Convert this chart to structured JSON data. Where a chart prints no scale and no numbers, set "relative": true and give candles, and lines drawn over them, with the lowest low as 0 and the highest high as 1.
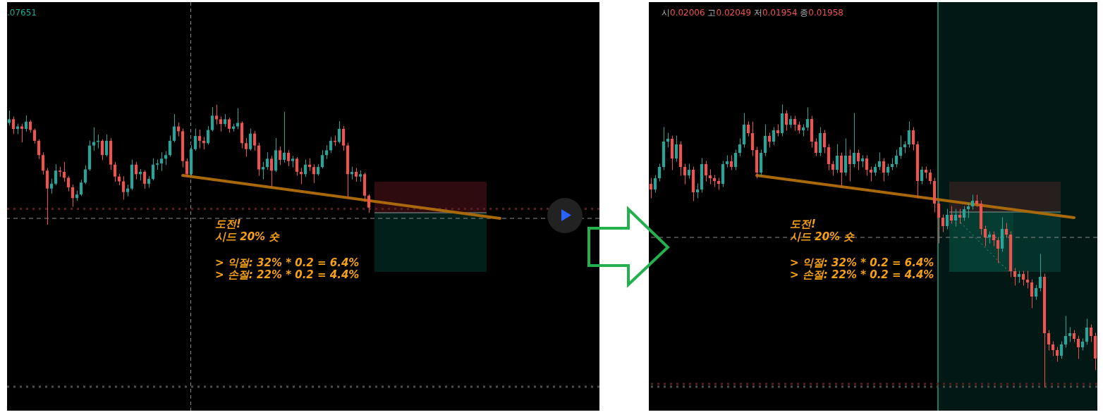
{
  "chart_data": [
    {
      "type": "candlestick",
      "relative": true,
      "tick_labels": false,
      "categories": [
        null,
        null,
        null,
        null,
        null,
        null,
        null,
        null,
        null,
        null,
        null,
        null,
        null,
        null,
        null,
        null,
        null,
        null,
        null,
        null,
        null,
        null,
        null,
        null,
        null,
        null,
        null,
        null,
        null,
        null,
        null,
        null,
        null,
        null,
        null,
        null,
        null,
        null,
        null,
        null,
        null,
        null,
        null,
        null,
        null,
        null,
        null,
        null,
        null,
        null,
        null,
        null,
        null,
        null,
        null,
        null,
        null,
        null,
        null,
        null,
        null,
        null,
        null,
        null,
        null,
        null,
        null,
        null,
        null,
        null,
        null,
        null,
        null,
        null,
        null,
        null,
        null,
        null,
        null,
        null,
        null,
        null,
        null,
        null,
        null,
        null,
        null,
        null,
        null,
        null,
        null,
        null,
        null,
        null,
        null,
        null,
        null,
        null,
        null,
        null,
        null,
        null,
        null,
        null,
        null,
        null,
        null,
        null,
        null,
        null,
        null,
        null,
        null,
        null,
        null,
        null,
        null,
        null,
        null,
        null,
        null,
        null,
        null,
        null,
        null,
        null,
        null,
        null,
        null,
        null,
        null,
        null,
        null,
        null,
        null,
        null,
        null,
        null,
        null,
        null
      ],
      "ohlc": [
        [
          0.85,
          0.95,
          0.83,
          0.88
        ],
        [
          0.88,
          0.9,
          0.76,
          0.8
        ],
        [
          0.8,
          0.84,
          0.76,
          0.82
        ],
        [
          0.82,
          0.84,
          0.69,
          0.8
        ],
        [
          0.8,
          0.91,
          0.78,
          0.86
        ],
        [
          0.86,
          0.87,
          0.77,
          0.79
        ],
        [
          0.79,
          0.8,
          0.68,
          0.7
        ],
        [
          0.7,
          0.71,
          0.55,
          0.58
        ],
        [
          0.58,
          0.6,
          0.42,
          0.45
        ],
        [
          0.45,
          0.47,
          0.0,
          0.3
        ],
        [
          0.3,
          0.38,
          0.26,
          0.34
        ],
        [
          0.34,
          0.5,
          0.33,
          0.45
        ],
        [
          0.45,
          0.48,
          0.4,
          0.44
        ],
        [
          0.44,
          0.52,
          0.36,
          0.39
        ],
        [
          0.39,
          0.4,
          0.28,
          0.31
        ],
        [
          0.31,
          0.33,
          0.15,
          0.22
        ],
        [
          0.22,
          0.28,
          0.2,
          0.25
        ],
        [
          0.25,
          0.37,
          0.24,
          0.35
        ],
        [
          0.35,
          0.49,
          0.34,
          0.46
        ],
        [
          0.46,
          0.7,
          0.45,
          0.66
        ],
        [
          0.66,
          0.81,
          0.62,
          0.69
        ],
        [
          0.69,
          0.75,
          0.64,
          0.7
        ],
        [
          0.7,
          0.71,
          0.54,
          0.58
        ],
        [
          0.58,
          0.75,
          0.57,
          0.7
        ],
        [
          0.7,
          0.72,
          0.46,
          0.5
        ],
        [
          0.5,
          0.52,
          0.36,
          0.4
        ],
        [
          0.4,
          0.42,
          0.33,
          0.36
        ],
        [
          0.36,
          0.4,
          0.21,
          0.27
        ],
        [
          0.27,
          0.33,
          0.24,
          0.3
        ],
        [
          0.3,
          0.54,
          0.29,
          0.5
        ],
        [
          0.5,
          0.52,
          0.38,
          0.42
        ],
        [
          0.42,
          0.46,
          0.37,
          0.44
        ],
        [
          0.44,
          0.45,
          0.3,
          0.34
        ],
        [
          0.34,
          0.4,
          0.31,
          0.38
        ],
        [
          0.38,
          0.55,
          0.37,
          0.5
        ],
        [
          0.5,
          0.54,
          0.46,
          0.51
        ],
        [
          0.51,
          0.6,
          0.45,
          0.55
        ],
        [
          0.55,
          0.61,
          0.5,
          0.58
        ],
        [
          0.58,
          0.74,
          0.57,
          0.7
        ],
        [
          0.7,
          0.92,
          0.69,
          0.82
        ],
        [
          0.82,
          0.85,
          0.74,
          0.78
        ],
        [
          0.78,
          0.8,
          0.48,
          0.53
        ],
        [
          0.53,
          0.55,
          0.4,
          0.42
        ],
        [
          0.42,
          0.66,
          0.41,
          0.63
        ],
        [
          0.63,
          0.8,
          0.62,
          0.74
        ],
        [
          0.74,
          0.79,
          0.64,
          0.7
        ],
        [
          0.7,
          0.73,
          0.63,
          0.68
        ],
        [
          0.68,
          0.82,
          0.67,
          0.79
        ],
        [
          0.79,
          0.98,
          0.78,
          0.91
        ],
        [
          0.91,
          1.0,
          0.84,
          0.88
        ],
        [
          0.88,
          0.9,
          0.78,
          0.84
        ],
        [
          0.84,
          0.92,
          0.82,
          0.88
        ],
        [
          0.88,
          0.89,
          0.77,
          0.8
        ],
        [
          0.8,
          0.84,
          0.78,
          0.82
        ],
        [
          0.82,
          0.97,
          0.8,
          0.85
        ],
        [
          0.85,
          0.86,
          0.64,
          0.68
        ],
        [
          0.68,
          0.72,
          0.57,
          0.63
        ],
        [
          0.63,
          0.8,
          0.62,
          0.76
        ],
        [
          0.76,
          0.78,
          0.62,
          0.66
        ],
        [
          0.66,
          0.68,
          0.41,
          0.46
        ],
        [
          0.46,
          0.52,
          0.38,
          0.48
        ],
        [
          0.48,
          0.6,
          0.46,
          0.55
        ],
        [
          0.55,
          0.57,
          0.32,
          0.45
        ],
        [
          0.45,
          0.72,
          0.44,
          0.62
        ],
        [
          0.62,
          0.65,
          0.5,
          0.54
        ],
        [
          0.54,
          0.94,
          0.52,
          0.6
        ],
        [
          0.6,
          0.62,
          0.49,
          0.53
        ],
        [
          0.53,
          0.57,
          0.48,
          0.55
        ],
        [
          0.55,
          0.56,
          0.41,
          0.44
        ],
        [
          0.44,
          0.47,
          0.34,
          0.42
        ],
        [
          0.42,
          0.54,
          0.4,
          0.5
        ],
        [
          0.5,
          0.55,
          0.45,
          0.48
        ],
        [
          0.48,
          0.5,
          0.35,
          0.42
        ],
        [
          0.42,
          0.5,
          0.41,
          0.48
        ],
        [
          0.48,
          0.62,
          0.47,
          0.58
        ],
        [
          0.58,
          0.66,
          0.55,
          0.62
        ],
        [
          0.62,
          0.73,
          0.6,
          0.7
        ],
        [
          0.7,
          0.74,
          0.66,
          0.69
        ],
        [
          0.69,
          0.86,
          0.68,
          0.8
        ],
        [
          0.8,
          0.82,
          0.62,
          0.66
        ],
        [
          0.66,
          0.68,
          0.23,
          0.42
        ],
        [
          0.42,
          0.48,
          0.38,
          0.44
        ],
        [
          0.44,
          0.47,
          0.36,
          0.4
        ],
        [
          0.4,
          0.45,
          0.36,
          0.42
        ],
        [
          0.42,
          0.43,
          0.19,
          0.24
        ],
        [
          0.24,
          0.25,
          0.1,
          0.14
        ],
        null,
        null,
        null,
        null,
        null,
        null,
        null,
        null,
        null,
        null,
        null,
        null,
        null,
        null,
        null,
        null,
        null,
        null,
        null,
        null,
        null,
        null,
        null,
        null,
        null,
        null,
        null,
        null,
        null,
        null,
        null,
        null,
        null,
        null,
        null,
        null,
        null,
        null,
        null,
        null,
        null,
        null,
        null,
        null,
        null,
        null,
        null,
        null,
        null,
        null,
        null,
        null,
        null,
        null
      ],
      "series": [
        {
          "type": "line",
          "color": "#a9690a",
          "values": [
            null,
            null,
            null,
            null,
            null,
            null,
            null,
            null,
            null,
            null,
            null,
            null,
            null,
            null,
            null,
            null,
            null,
            null,
            null,
            null,
            null,
            null,
            null,
            null,
            null,
            null,
            null,
            null,
            null,
            null,
            null,
            null,
            null,
            null,
            null,
            null,
            null,
            null,
            null,
            null,
            null,
            0.41,
            null,
            null,
            null,
            null,
            null,
            null,
            null,
            null,
            null,
            null,
            null,
            null,
            null,
            null,
            null,
            null,
            null,
            null,
            null,
            null,
            null,
            null,
            null,
            null,
            null,
            null,
            null,
            null,
            null,
            null,
            null,
            null,
            null,
            null,
            null,
            null,
            null,
            null,
            null,
            null,
            null,
            null,
            null,
            null,
            null,
            null,
            null,
            null,
            null,
            null,
            null,
            null,
            null,
            null,
            null,
            null,
            null,
            null,
            null,
            null,
            null,
            null,
            null,
            null,
            null,
            null,
            null,
            null,
            null,
            null,
            null,
            null,
            null,
            null,
            0.05,
            null,
            null,
            null,
            null,
            null,
            null,
            null,
            null,
            null,
            null,
            null,
            null,
            null,
            null,
            null,
            null,
            null,
            null,
            null,
            null,
            null,
            null,
            null
          ]
        }
      ],
      "ref_lines": [
        {
          "axis": "y",
          "value": 0.13,
          "color": "#5b1e1e",
          "line_style": "dotted"
        },
        {
          "axis": "y",
          "value": 0.05,
          "color": "#8c8c8c",
          "line_style": "dashed"
        },
        {
          "axis": "y",
          "value": -1.36,
          "color": "#4d4d4d",
          "line_style": "dotted"
        }
      ],
      "annotations": [
        ".07651",
        "도전!",
        "시드 20% 숏",
        "> 익절: 32% * 0.2 = 6.4%",
        "> 손절: 22% * 0.2 = 4.4%"
      ]
    },
    {
      "type": "candlestick",
      "relative": true,
      "tick_labels": false,
      "categories": [
        null,
        null,
        null,
        null,
        null,
        null,
        null,
        null,
        null,
        null,
        null,
        null,
        null,
        null,
        null,
        null,
        null,
        null,
        null,
        null,
        null,
        null,
        null,
        null,
        null,
        null,
        null,
        null,
        null,
        null,
        null,
        null,
        null,
        null,
        null,
        null,
        null,
        null,
        null,
        null,
        null,
        null,
        null,
        null,
        null,
        null,
        null,
        null,
        null,
        null,
        null,
        null,
        null,
        null,
        null,
        null,
        null,
        null,
        null,
        null,
        null,
        null,
        null,
        null,
        null,
        null,
        null,
        null,
        null,
        null,
        null,
        null,
        null,
        null,
        null,
        null,
        null,
        null,
        null,
        null,
        null,
        null,
        null,
        null,
        null,
        null,
        null,
        null,
        null,
        null,
        null,
        null,
        null,
        null,
        null,
        null,
        null,
        null,
        null,
        null,
        null,
        null,
        null,
        null,
        null,
        null
      ],
      "ohlc": [
        [
          0.72,
          0.74,
          0.67,
          0.7
        ],
        [
          0.7,
          0.75,
          0.69,
          0.74
        ],
        [
          0.74,
          0.79,
          0.73,
          0.78
        ],
        [
          0.78,
          0.92,
          0.77,
          0.87
        ],
        [
          0.87,
          0.9,
          0.85,
          0.88
        ],
        [
          0.88,
          0.89,
          0.77,
          0.81
        ],
        [
          0.81,
          0.89,
          0.8,
          0.86
        ],
        [
          0.86,
          0.87,
          0.75,
          0.78
        ],
        [
          0.78,
          0.79,
          0.72,
          0.75
        ],
        [
          0.75,
          0.79,
          0.74,
          0.77
        ],
        [
          0.77,
          0.78,
          0.66,
          0.69
        ],
        [
          0.69,
          0.72,
          0.67,
          0.7
        ],
        [
          0.7,
          0.81,
          0.69,
          0.79
        ],
        [
          0.79,
          0.8,
          0.73,
          0.75
        ],
        [
          0.75,
          0.77,
          0.72,
          0.74
        ],
        [
          0.74,
          0.75,
          0.71,
          0.73
        ],
        [
          0.73,
          0.74,
          0.7,
          0.72
        ],
        [
          0.72,
          0.8,
          0.71,
          0.79
        ],
        [
          0.79,
          0.82,
          0.78,
          0.8
        ],
        [
          0.8,
          0.82,
          0.77,
          0.78
        ],
        [
          0.78,
          0.84,
          0.77,
          0.83
        ],
        [
          0.83,
          0.88,
          0.82,
          0.86
        ],
        [
          0.86,
          0.97,
          0.85,
          0.93
        ],
        [
          0.93,
          0.94,
          0.89,
          0.9
        ],
        [
          0.9,
          0.94,
          0.82,
          0.84
        ],
        [
          0.84,
          0.85,
          0.74,
          0.76
        ],
        [
          0.76,
          0.84,
          0.75,
          0.83
        ],
        [
          0.83,
          0.93,
          0.82,
          0.89
        ],
        [
          0.89,
          0.9,
          0.85,
          0.87
        ],
        [
          0.87,
          0.92,
          0.86,
          0.91
        ],
        [
          0.91,
          0.93,
          0.89,
          0.9
        ],
        [
          0.9,
          1.0,
          0.89,
          0.97
        ],
        [
          0.97,
          0.98,
          0.91,
          0.93
        ],
        [
          0.93,
          0.96,
          0.92,
          0.95
        ],
        [
          0.95,
          0.96,
          0.91,
          0.93
        ],
        [
          0.93,
          0.94,
          0.9,
          0.91
        ],
        [
          0.91,
          0.93,
          0.89,
          0.92
        ],
        [
          0.92,
          0.99,
          0.91,
          0.95
        ],
        [
          0.95,
          0.96,
          0.85,
          0.87
        ],
        [
          0.87,
          0.88,
          0.82,
          0.83
        ],
        [
          0.83,
          0.92,
          0.82,
          0.9
        ],
        [
          0.9,
          0.91,
          0.83,
          0.85
        ],
        [
          0.85,
          0.86,
          0.77,
          0.79
        ],
        [
          0.79,
          0.8,
          0.75,
          0.77
        ],
        [
          0.77,
          0.86,
          0.76,
          0.82
        ],
        [
          0.82,
          0.83,
          0.71,
          0.76
        ],
        [
          0.76,
          0.88,
          0.75,
          0.82
        ],
        [
          0.82,
          0.84,
          0.73,
          0.79
        ],
        [
          0.79,
          0.97,
          0.78,
          0.83
        ],
        [
          0.83,
          0.84,
          0.77,
          0.8
        ],
        [
          0.8,
          0.82,
          0.78,
          0.81
        ],
        [
          0.81,
          0.82,
          0.75,
          0.77
        ],
        [
          0.77,
          0.78,
          0.73,
          0.76
        ],
        [
          0.76,
          0.79,
          0.75,
          0.78
        ],
        [
          0.78,
          0.83,
          0.77,
          0.8
        ],
        [
          0.8,
          0.81,
          0.73,
          0.76
        ],
        [
          0.76,
          0.79,
          0.75,
          0.78
        ],
        [
          0.78,
          0.81,
          0.77,
          0.79
        ],
        [
          0.79,
          0.84,
          0.78,
          0.82
        ],
        [
          0.82,
          0.89,
          0.81,
          0.85
        ],
        [
          0.85,
          0.87,
          0.83,
          0.86
        ],
        [
          0.86,
          0.94,
          0.85,
          0.91
        ],
        [
          0.91,
          0.92,
          0.84,
          0.86
        ],
        [
          0.86,
          0.87,
          0.67,
          0.73
        ],
        [
          0.73,
          0.78,
          0.72,
          0.77
        ],
        [
          0.77,
          0.78,
          0.74,
          0.76
        ],
        [
          0.76,
          0.77,
          0.72,
          0.73
        ],
        [
          0.73,
          0.74,
          0.62,
          0.65
        ],
        [
          0.65,
          0.66,
          0.51,
          0.6
        ],
        [
          0.6,
          0.61,
          0.55,
          0.57
        ],
        [
          0.57,
          0.63,
          0.56,
          0.61
        ],
        [
          0.61,
          0.64,
          0.58,
          0.59
        ],
        [
          0.59,
          0.63,
          0.57,
          0.61
        ],
        [
          0.61,
          0.63,
          0.58,
          0.6
        ],
        [
          0.6,
          0.64,
          0.59,
          0.63
        ],
        [
          0.63,
          0.65,
          0.6,
          0.64
        ],
        [
          0.64,
          0.68,
          0.63,
          0.66
        ],
        [
          0.66,
          0.68,
          0.64,
          0.65
        ],
        [
          0.65,
          0.66,
          0.54,
          0.56
        ],
        [
          0.56,
          0.57,
          0.5,
          0.53
        ],
        [
          0.53,
          0.55,
          0.51,
          0.54
        ],
        [
          0.54,
          0.55,
          0.5,
          0.52
        ],
        [
          0.52,
          0.53,
          0.44,
          0.49
        ],
        [
          0.49,
          0.6,
          0.48,
          0.56
        ],
        [
          0.56,
          0.58,
          0.53,
          0.54
        ],
        [
          0.54,
          0.55,
          0.39,
          0.41
        ],
        [
          0.41,
          0.42,
          0.36,
          0.39
        ],
        [
          0.39,
          0.41,
          0.37,
          0.4
        ],
        [
          0.4,
          0.41,
          0.36,
          0.38
        ],
        [
          0.38,
          0.41,
          0.35,
          0.37
        ],
        [
          0.37,
          0.38,
          0.28,
          0.32
        ],
        [
          0.32,
          0.36,
          0.31,
          0.35
        ],
        [
          0.35,
          0.47,
          0.34,
          0.39
        ],
        [
          0.39,
          0.4,
          0.0,
          0.19
        ],
        [
          0.19,
          0.2,
          0.13,
          0.15
        ],
        [
          0.15,
          0.16,
          0.11,
          0.13
        ],
        [
          0.13,
          0.14,
          0.09,
          0.11
        ],
        [
          0.11,
          0.16,
          0.1,
          0.15
        ],
        [
          0.15,
          0.25,
          0.14,
          0.18
        ],
        [
          0.18,
          0.21,
          0.16,
          0.19
        ],
        [
          0.19,
          0.2,
          0.16,
          0.17
        ],
        [
          0.17,
          0.18,
          0.1,
          0.14
        ],
        [
          0.14,
          0.17,
          0.13,
          0.16
        ],
        [
          0.16,
          0.24,
          0.15,
          0.21
        ],
        [
          0.21,
          0.22,
          0.16,
          0.18
        ],
        [
          0.18,
          0.19,
          0.06,
          0.1
        ]
      ],
      "series": [
        {
          "type": "line",
          "color": "#a9690a",
          "values": [
            null,
            null,
            null,
            null,
            null,
            null,
            null,
            null,
            null,
            null,
            null,
            null,
            null,
            null,
            null,
            null,
            null,
            null,
            null,
            null,
            null,
            null,
            null,
            null,
            null,
            0.75,
            null,
            null,
            null,
            null,
            null,
            null,
            null,
            null,
            null,
            null,
            null,
            null,
            null,
            null,
            null,
            null,
            null,
            null,
            null,
            null,
            null,
            null,
            null,
            null,
            null,
            null,
            null,
            null,
            null,
            null,
            null,
            null,
            null,
            null,
            null,
            null,
            null,
            null,
            null,
            null,
            null,
            null,
            null,
            null,
            null,
            null,
            null,
            null,
            null,
            null,
            null,
            null,
            null,
            null,
            null,
            null,
            null,
            null,
            null,
            null,
            null,
            null,
            null,
            null,
            null,
            null,
            null,
            null,
            null,
            null,
            null,
            null,
            null,
            null,
            0.6,
            null,
            null,
            null,
            null,
            null
          ]
        }
      ],
      "ref_lines": [
        {
          "axis": "y",
          "value": 0.01,
          "color": "#5b1e1e",
          "line_style": "dotted"
        },
        {
          "axis": "y",
          "value": 0.53,
          "color": "#8c8c8c",
          "line_style": "dashed"
        },
        {
          "axis": "y",
          "value": 0.0,
          "color": "#4d4d4d",
          "line_style": "dotted"
        }
      ],
      "annotations": [
        "시0.02006 고0.02049 저0.01954 종0.01958",
        "도전!",
        "시드 20% 숏",
        "> 익절: 32% * 0.2 = 6.4%",
        "> 손절: 22% * 0.2 = 4.4%"
      ]
    }
  ]
}
